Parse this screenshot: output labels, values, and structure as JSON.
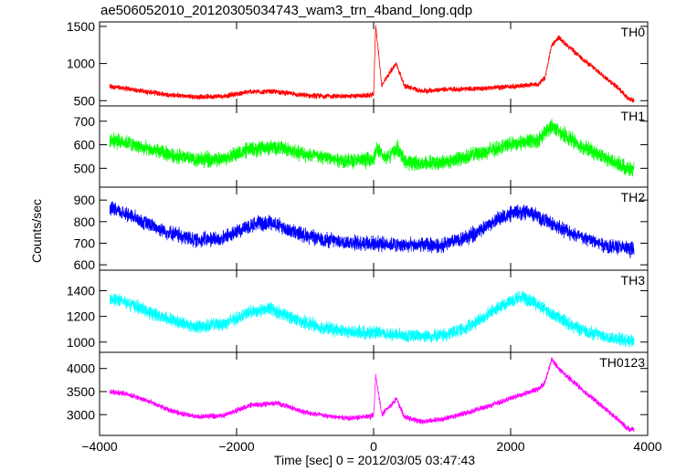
{
  "chart_data": {
    "type": "line",
    "title": "ae506052010_20120305034743_wam3_trn_4band_long.qdp",
    "xlabel": "Time [sec] 0 = 2012/03/05 03:47:43",
    "ylabel": "Counts/sec",
    "xlim": [
      -4000,
      4000
    ],
    "x_ticks": [
      -4000,
      -2000,
      0,
      2000,
      4000
    ],
    "x_tick_labels": [
      "−4000",
      "−2000",
      "0",
      "2000",
      "4000"
    ],
    "panels": [
      {
        "label": "TH0",
        "color": "#ff0000",
        "ylim": [
          430,
          1560
        ],
        "y_ticks": [
          500,
          1000,
          1500
        ],
        "y_tick_labels": [
          "500",
          "1000",
          "1500"
        ],
        "noise": 30,
        "x": [
          -3850,
          -3600,
          -3300,
          -3000,
          -2600,
          -2200,
          -1800,
          -1400,
          -1000,
          -600,
          -300,
          -100,
          0,
          30,
          120,
          250,
          330,
          450,
          700,
          1000,
          1500,
          2000,
          2400,
          2500,
          2600,
          2700,
          3000,
          3400,
          3600,
          3700,
          3800
        ],
        "y": [
          690,
          660,
          620,
          580,
          550,
          560,
          620,
          620,
          570,
          560,
          560,
          570,
          580,
          1520,
          700,
          900,
          1000,
          700,
          630,
          650,
          660,
          690,
          720,
          800,
          1250,
          1350,
          1100,
          800,
          650,
          540,
          500
        ]
      },
      {
        "label": "TH1",
        "color": "#00ff00",
        "ylim": [
          420,
          765
        ],
        "y_ticks": [
          500,
          600,
          700
        ],
        "y_tick_labels": [
          "500",
          "600",
          "700"
        ],
        "noise": 28,
        "x": [
          -3850,
          -3600,
          -3300,
          -3000,
          -2600,
          -2200,
          -1800,
          -1400,
          -1000,
          -600,
          -300,
          -100,
          0,
          50,
          150,
          250,
          350,
          450,
          700,
          1000,
          1500,
          2000,
          2400,
          2600,
          2700,
          3000,
          3400,
          3700,
          3800
        ],
        "y": [
          620,
          610,
          580,
          560,
          535,
          540,
          580,
          590,
          560,
          540,
          530,
          535,
          540,
          585,
          545,
          560,
          585,
          530,
          520,
          525,
          560,
          600,
          620,
          680,
          660,
          600,
          540,
          500,
          490
        ]
      },
      {
        "label": "TH2",
        "color": "#0000ff",
        "ylim": [
          575,
          960
        ],
        "y_ticks": [
          600,
          700,
          800,
          900
        ],
        "y_tick_labels": [
          "600",
          "700",
          "800",
          "900"
        ],
        "noise": 30,
        "x": [
          -3850,
          -3600,
          -3300,
          -3000,
          -2600,
          -2200,
          -1800,
          -1500,
          -1200,
          -800,
          -400,
          0,
          500,
          1000,
          1400,
          1800,
          2100,
          2300,
          2600,
          3000,
          3400,
          3800
        ],
        "y": [
          860,
          835,
          790,
          750,
          715,
          720,
          785,
          800,
          755,
          720,
          705,
          700,
          690,
          690,
          730,
          810,
          845,
          840,
          790,
          730,
          690,
          670
        ]
      },
      {
        "label": "TH3",
        "color": "#00ffff",
        "ylim": [
          920,
          1560
        ],
        "y_ticks": [
          1000,
          1200,
          1400
        ],
        "y_tick_labels": [
          "1000",
          "1200",
          "1400"
        ],
        "noise": 45,
        "x": [
          -3850,
          -3600,
          -3300,
          -3000,
          -2600,
          -2200,
          -1800,
          -1500,
          -1200,
          -800,
          -400,
          0,
          500,
          1000,
          1400,
          1800,
          2100,
          2300,
          2600,
          3000,
          3400,
          3800
        ],
        "y": [
          1340,
          1310,
          1240,
          1180,
          1120,
          1140,
          1230,
          1260,
          1190,
          1120,
          1080,
          1070,
          1050,
          1050,
          1120,
          1260,
          1350,
          1330,
          1220,
          1100,
          1040,
          1010
        ]
      },
      {
        "label": "TH0123",
        "color": "#ff00ff",
        "ylim": [
          2550,
          4350
        ],
        "y_ticks": [
          3000,
          3500,
          4000
        ],
        "y_tick_labels": [
          "3000",
          "3500",
          "4000"
        ],
        "noise": 50,
        "x": [
          -3850,
          -3600,
          -3300,
          -3000,
          -2600,
          -2200,
          -1800,
          -1400,
          -1000,
          -600,
          -300,
          -100,
          0,
          30,
          120,
          250,
          330,
          450,
          700,
          1000,
          1500,
          2000,
          2400,
          2500,
          2600,
          2700,
          3000,
          3400,
          3600,
          3700,
          3800
        ],
        "y": [
          3500,
          3450,
          3300,
          3100,
          2950,
          2980,
          3200,
          3250,
          3050,
          2950,
          2930,
          2950,
          2980,
          3850,
          3000,
          3200,
          3350,
          2950,
          2850,
          2900,
          3100,
          3350,
          3550,
          3700,
          4200,
          4000,
          3600,
          3100,
          2850,
          2700,
          2680
        ]
      }
    ]
  }
}
